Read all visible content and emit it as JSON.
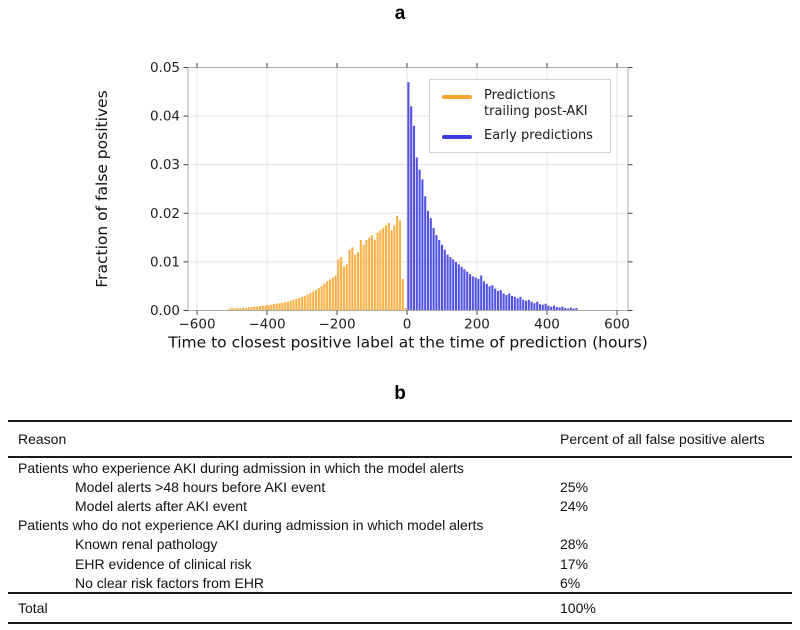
{
  "figure": {
    "panel_a_label": "a",
    "panel_b_label": "b"
  },
  "chart_data": {
    "type": "bar",
    "title": "",
    "xlabel": "Time to closest positive label at the time of prediction (hours)",
    "ylabel": "Fraction of false positives",
    "xlim": [
      -626,
      631
    ],
    "ylim": [
      0,
      0.05
    ],
    "xticks": [
      -600,
      -400,
      -200,
      0,
      200,
      400,
      600
    ],
    "xtick_labels": [
      "−600",
      "−400",
      "−200",
      "0",
      "200",
      "400",
      "600"
    ],
    "yticks": [
      0,
      0.01,
      0.02,
      0.03,
      0.04,
      0.05
    ],
    "ytick_labels": [
      "0.00",
      "0.01",
      "0.02",
      "0.03",
      "0.04",
      "0.05"
    ],
    "grid": true,
    "legend_position": "upper right",
    "bin_width_hours": 8,
    "series": [
      {
        "name": "Predictions trailing post-AKI",
        "color": "#F6A62E",
        "x0": -512,
        "step": 8,
        "values": [
          0.0003,
          0.0005,
          0.0004,
          0.0005,
          0.0005,
          0.0006,
          0.0005,
          0.0007,
          0.0007,
          0.0008,
          0.0008,
          0.0009,
          0.001,
          0.001,
          0.0011,
          0.0012,
          0.0013,
          0.0014,
          0.0015,
          0.0016,
          0.0017,
          0.0018,
          0.002,
          0.0022,
          0.0024,
          0.0026,
          0.0028,
          0.003,
          0.0033,
          0.0036,
          0.0039,
          0.0042,
          0.0046,
          0.005,
          0.0055,
          0.006,
          0.0064,
          0.0068,
          0.0072,
          0.0105,
          0.011,
          0.009,
          0.0095,
          0.0125,
          0.013,
          0.0115,
          0.012,
          0.0145,
          0.0135,
          0.0145,
          0.015,
          0.0155,
          0.0145,
          0.016,
          0.0165,
          0.017,
          0.0175,
          0.018,
          0.0165,
          0.0175,
          0.0195,
          0.0185,
          0.0065,
          0.0005
        ]
      },
      {
        "name": "Early predictions",
        "color": "#3B3BDE",
        "x0": 0,
        "step": 8,
        "values": [
          0.047,
          0.042,
          0.038,
          0.0315,
          0.029,
          0.027,
          0.0235,
          0.0205,
          0.019,
          0.017,
          0.0155,
          0.0145,
          0.0135,
          0.0125,
          0.0115,
          0.011,
          0.0105,
          0.01,
          0.0095,
          0.009,
          0.0085,
          0.008,
          0.0075,
          0.007,
          0.0068,
          0.0065,
          0.0072,
          0.006,
          0.0055,
          0.005,
          0.0052,
          0.0045,
          0.004,
          0.0042,
          0.0035,
          0.0032,
          0.0035,
          0.003,
          0.0028,
          0.0025,
          0.0028,
          0.0022,
          0.002,
          0.0022,
          0.0018,
          0.0015,
          0.0018,
          0.0013,
          0.0012,
          0.0014,
          0.001,
          0.0008,
          0.001,
          0.0007,
          0.0006,
          0.0008,
          0.0005,
          0.0004,
          0.0006,
          0.0004,
          0.0005
        ]
      }
    ]
  },
  "table": {
    "columns": [
      "Reason",
      "Percent of all false positive alerts"
    ],
    "rows": [
      {
        "label": "Patients who experience AKI during admission in which the model alerts",
        "value": "",
        "indent": 0
      },
      {
        "label": "Model alerts >48 hours before AKI event",
        "value": "25%",
        "indent": 1
      },
      {
        "label": "Model alerts after AKI event",
        "value": "24%",
        "indent": 1
      },
      {
        "label": "Patients who do not experience AKI during admission in which model alerts",
        "value": "",
        "indent": 0
      },
      {
        "label": "Known renal pathology",
        "value": "28%",
        "indent": 1
      },
      {
        "label": "EHR evidence of clinical risk",
        "value": "17%",
        "indent": 1
      },
      {
        "label": "No clear risk factors from EHR",
        "value": "6%",
        "indent": 1
      }
    ],
    "total_label": "Total",
    "total_value": "100%"
  }
}
